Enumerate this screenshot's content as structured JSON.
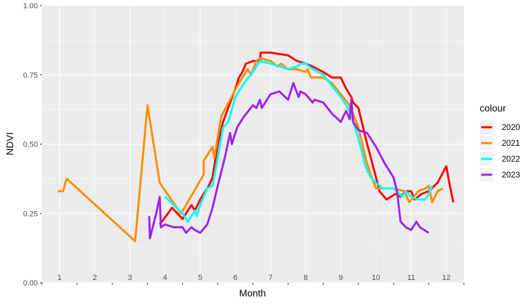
{
  "chart_data": {
    "type": "line",
    "xlabel": "Month",
    "ylabel": "NDVI",
    "xlim": [
      0.5,
      12.5
    ],
    "ylim": [
      0,
      1
    ],
    "yticks": [
      "0.00",
      "0.25",
      "0.50",
      "0.75",
      "1.00"
    ],
    "month_labels": [
      "1",
      "2",
      "3",
      "4",
      "5",
      "6",
      "7",
      "8",
      "9",
      "10",
      "11",
      "12"
    ],
    "grid": true,
    "legend_position": "right",
    "legend_title": "colour",
    "series": [
      {
        "name": "2020",
        "color": "#ff0000",
        "points": [
          [
            3.85,
            0.21
          ],
          [
            4.2,
            0.27
          ],
          [
            4.5,
            0.23
          ],
          [
            4.75,
            0.28
          ],
          [
            4.85,
            0.26
          ],
          [
            5.0,
            0.3
          ],
          [
            5.25,
            0.35
          ],
          [
            5.35,
            0.38
          ],
          [
            5.5,
            0.5
          ],
          [
            5.65,
            0.58
          ],
          [
            6.0,
            0.7
          ],
          [
            6.1,
            0.74
          ],
          [
            6.2,
            0.76
          ],
          [
            6.3,
            0.79
          ],
          [
            6.5,
            0.8
          ],
          [
            6.7,
            0.8
          ],
          [
            6.72,
            0.83
          ],
          [
            7.0,
            0.83
          ],
          [
            7.5,
            0.82
          ],
          [
            7.75,
            0.8
          ],
          [
            8.0,
            0.79
          ],
          [
            8.2,
            0.78
          ],
          [
            8.5,
            0.76
          ],
          [
            8.75,
            0.74
          ],
          [
            9.0,
            0.74
          ],
          [
            9.15,
            0.7
          ],
          [
            9.3,
            0.67
          ],
          [
            9.35,
            0.65
          ],
          [
            9.5,
            0.63
          ],
          [
            9.75,
            0.5
          ],
          [
            10.0,
            0.38
          ],
          [
            10.1,
            0.33
          ],
          [
            10.3,
            0.3
          ],
          [
            10.55,
            0.32
          ],
          [
            10.7,
            0.31
          ],
          [
            10.85,
            0.33
          ],
          [
            11.0,
            0.33
          ],
          [
            11.1,
            0.3
          ],
          [
            11.3,
            0.32
          ],
          [
            11.5,
            0.33
          ],
          [
            11.75,
            0.36
          ],
          [
            12.0,
            0.42
          ],
          [
            12.1,
            0.35
          ],
          [
            12.2,
            0.29
          ]
        ]
      },
      {
        "name": "2021",
        "color": "#ff8c00",
        "points": [
          [
            0.95,
            0.33
          ],
          [
            1.1,
            0.33
          ],
          [
            1.2,
            0.375
          ],
          [
            3.15,
            0.15
          ],
          [
            3.5,
            0.64
          ],
          [
            3.85,
            0.36
          ],
          [
            4.45,
            0.25
          ],
          [
            4.55,
            0.27
          ],
          [
            5.1,
            0.39
          ],
          [
            5.1,
            0.44
          ],
          [
            5.35,
            0.49
          ],
          [
            5.4,
            0.45
          ],
          [
            5.6,
            0.6
          ],
          [
            6.1,
            0.72
          ],
          [
            6.35,
            0.77
          ],
          [
            6.45,
            0.75
          ],
          [
            6.6,
            0.8
          ],
          [
            6.7,
            0.81
          ],
          [
            7.0,
            0.8
          ],
          [
            7.2,
            0.78
          ],
          [
            7.3,
            0.79
          ],
          [
            7.5,
            0.77
          ],
          [
            7.75,
            0.77
          ],
          [
            8.0,
            0.76
          ],
          [
            8.05,
            0.77
          ],
          [
            8.15,
            0.74
          ],
          [
            8.5,
            0.74
          ],
          [
            8.75,
            0.72
          ],
          [
            9.0,
            0.68
          ],
          [
            9.25,
            0.64
          ],
          [
            9.5,
            0.56
          ],
          [
            9.7,
            0.45
          ],
          [
            9.85,
            0.39
          ],
          [
            10.0,
            0.34
          ],
          [
            10.2,
            0.34
          ],
          [
            10.5,
            0.34
          ],
          [
            10.8,
            0.33
          ],
          [
            10.95,
            0.29
          ],
          [
            11.2,
            0.33
          ],
          [
            11.4,
            0.34
          ],
          [
            11.5,
            0.35
          ],
          [
            11.6,
            0.29
          ],
          [
            11.75,
            0.33
          ],
          [
            11.9,
            0.34
          ]
        ]
      },
      {
        "name": "2022",
        "color": "#00ffff",
        "points": [
          [
            4.0,
            0.31
          ],
          [
            4.25,
            0.28
          ],
          [
            4.5,
            0.25
          ],
          [
            4.65,
            0.22
          ],
          [
            4.85,
            0.26
          ],
          [
            4.9,
            0.24
          ],
          [
            5.0,
            0.28
          ],
          [
            5.2,
            0.34
          ],
          [
            5.35,
            0.35
          ],
          [
            5.5,
            0.45
          ],
          [
            5.65,
            0.56
          ],
          [
            5.8,
            0.58
          ],
          [
            6.0,
            0.67
          ],
          [
            6.25,
            0.72
          ],
          [
            6.5,
            0.76
          ],
          [
            6.7,
            0.8
          ],
          [
            7.0,
            0.79
          ],
          [
            7.5,
            0.77
          ],
          [
            7.75,
            0.78
          ],
          [
            7.85,
            0.79
          ],
          [
            8.0,
            0.79
          ],
          [
            8.2,
            0.77
          ],
          [
            8.5,
            0.75
          ],
          [
            8.75,
            0.71
          ],
          [
            9.0,
            0.67
          ],
          [
            9.25,
            0.62
          ],
          [
            9.5,
            0.52
          ],
          [
            9.7,
            0.42
          ],
          [
            9.85,
            0.38
          ],
          [
            10.0,
            0.36
          ],
          [
            10.2,
            0.34
          ],
          [
            10.5,
            0.34
          ],
          [
            10.75,
            0.31
          ],
          [
            10.85,
            0.33
          ],
          [
            11.0,
            0.31
          ],
          [
            11.2,
            0.3
          ],
          [
            11.4,
            0.3
          ],
          [
            11.5,
            0.32
          ],
          [
            11.6,
            0.35
          ]
        ]
      },
      {
        "name": "2023",
        "color": "#a020f0",
        "points": [
          [
            3.55,
            0.24
          ],
          [
            3.57,
            0.16
          ],
          [
            3.65,
            0.2
          ],
          [
            3.75,
            0.25
          ],
          [
            3.85,
            0.31
          ],
          [
            3.88,
            0.2
          ],
          [
            4.0,
            0.21
          ],
          [
            4.25,
            0.2
          ],
          [
            4.5,
            0.2
          ],
          [
            4.6,
            0.18
          ],
          [
            4.75,
            0.2
          ],
          [
            4.85,
            0.19
          ],
          [
            5.0,
            0.18
          ],
          [
            5.2,
            0.21
          ],
          [
            5.35,
            0.27
          ],
          [
            5.5,
            0.35
          ],
          [
            5.7,
            0.45
          ],
          [
            5.85,
            0.54
          ],
          [
            5.9,
            0.5
          ],
          [
            6.05,
            0.56
          ],
          [
            6.25,
            0.6
          ],
          [
            6.5,
            0.64
          ],
          [
            6.6,
            0.63
          ],
          [
            6.7,
            0.66
          ],
          [
            6.75,
            0.63
          ],
          [
            7.0,
            0.68
          ],
          [
            7.25,
            0.69
          ],
          [
            7.5,
            0.66
          ],
          [
            7.65,
            0.72
          ],
          [
            7.8,
            0.67
          ],
          [
            7.85,
            0.69
          ],
          [
            8.0,
            0.68
          ],
          [
            8.2,
            0.65
          ],
          [
            8.25,
            0.66
          ],
          [
            8.5,
            0.65
          ],
          [
            8.75,
            0.61
          ],
          [
            9.0,
            0.58
          ],
          [
            9.15,
            0.62
          ],
          [
            9.25,
            0.59
          ],
          [
            9.3,
            0.66
          ],
          [
            9.35,
            0.58
          ],
          [
            9.5,
            0.55
          ],
          [
            9.75,
            0.54
          ],
          [
            10.0,
            0.49
          ],
          [
            10.25,
            0.43
          ],
          [
            10.5,
            0.38
          ],
          [
            10.6,
            0.33
          ],
          [
            10.7,
            0.22
          ],
          [
            10.85,
            0.2
          ],
          [
            11.0,
            0.19
          ],
          [
            11.15,
            0.22
          ],
          [
            11.25,
            0.2
          ],
          [
            11.5,
            0.18
          ]
        ]
      }
    ]
  }
}
